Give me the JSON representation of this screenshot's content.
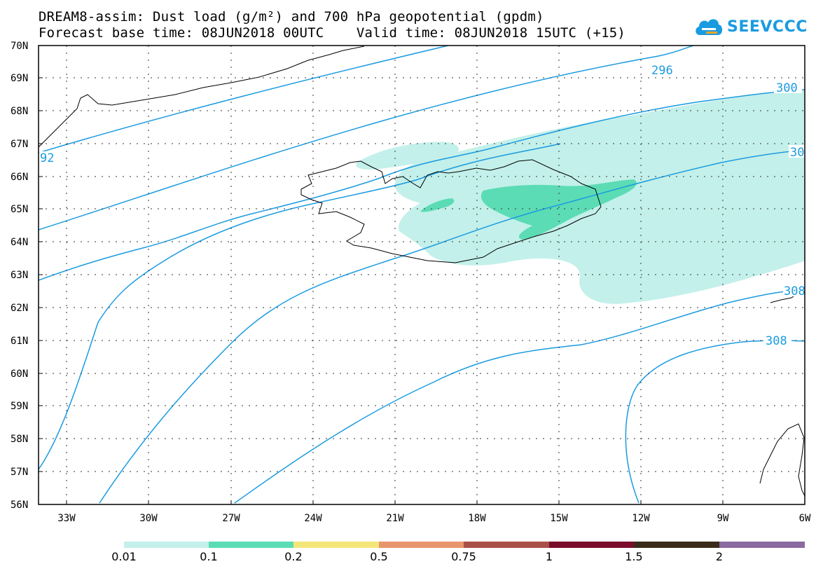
{
  "header": {
    "title_line1": "DREAM8-assim: Dust load (g/m²) and 700 hPa geopotential (gpdm)",
    "title_line2": "Forecast base time: 08JUN2018 00UTC    Valid time: 08JUN2018 15UTC (+15)"
  },
  "logo": {
    "text": "SEEVCCC",
    "icon": "cloud-icon",
    "color": "#1a9be0"
  },
  "map": {
    "lat_labels": [
      "70N",
      "69N",
      "68N",
      "67N",
      "66N",
      "65N",
      "64N",
      "63N",
      "62N",
      "61N",
      "60N",
      "59N",
      "58N",
      "57N",
      "56N"
    ],
    "lon_labels": [
      "33W",
      "30W",
      "27W",
      "24W",
      "21W",
      "18W",
      "15W",
      "12W",
      "9W",
      "6W"
    ],
    "contour_labels": [
      "296",
      "300",
      "30",
      "92",
      "308",
      "308"
    ],
    "contour_color": "#1a9be0",
    "dust_colors": {
      "low": "#c3f0ea",
      "mid": "#5cdcb4"
    }
  },
  "colorbar": {
    "colors": [
      "#c3f0ea",
      "#5cdcb4",
      "#f5e67a",
      "#e8956d",
      "#a85048",
      "#7a0c2c",
      "#3a2a1a",
      "#8a6aa0"
    ],
    "labels": [
      "0.01",
      "0.1",
      "0.2",
      "0.5",
      "0.75",
      "1",
      "1.5",
      "2"
    ]
  }
}
